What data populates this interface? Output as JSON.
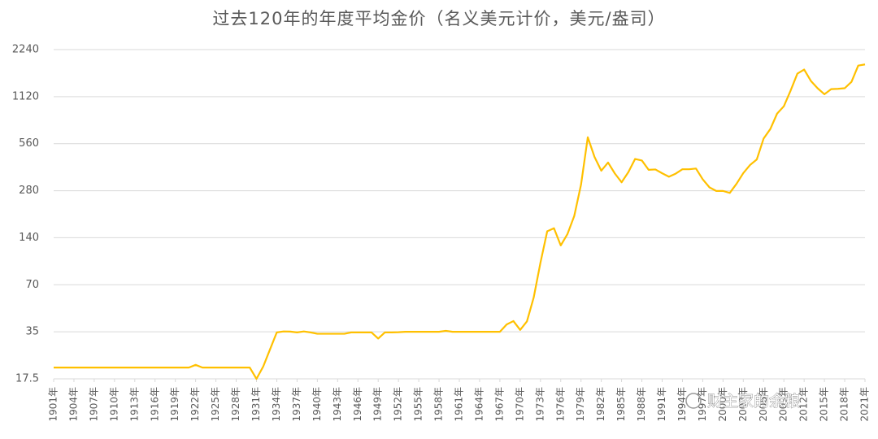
{
  "chart_data": {
    "type": "line",
    "title": "过去120年的年度平均金价（名义美元计价，美元/盎司）",
    "log_scale": true,
    "grid": true,
    "color": "#FFC000",
    "x": [
      1901,
      1902,
      1903,
      1904,
      1905,
      1906,
      1907,
      1908,
      1909,
      1910,
      1911,
      1912,
      1913,
      1914,
      1915,
      1916,
      1917,
      1918,
      1919,
      1920,
      1921,
      1922,
      1923,
      1924,
      1925,
      1926,
      1927,
      1928,
      1929,
      1930,
      1931,
      1932,
      1933,
      1934,
      1935,
      1936,
      1937,
      1938,
      1939,
      1940,
      1941,
      1942,
      1943,
      1944,
      1945,
      1946,
      1947,
      1948,
      1949,
      1950,
      1951,
      1952,
      1953,
      1954,
      1955,
      1956,
      1957,
      1958,
      1959,
      1960,
      1961,
      1962,
      1963,
      1964,
      1965,
      1966,
      1967,
      1968,
      1969,
      1970,
      1971,
      1972,
      1973,
      1974,
      1975,
      1976,
      1977,
      1978,
      1979,
      1980,
      1981,
      1982,
      1983,
      1984,
      1985,
      1986,
      1987,
      1988,
      1989,
      1990,
      1991,
      1992,
      1993,
      1994,
      1995,
      1996,
      1997,
      1998,
      1999,
      2000,
      2001,
      2002,
      2003,
      2004,
      2005,
      2006,
      2007,
      2008,
      2009,
      2010,
      2011,
      2012,
      2013,
      2014,
      2015,
      2016,
      2017,
      2018,
      2019,
      2020,
      2021
    ],
    "values": [
      20.67,
      20.67,
      20.67,
      20.67,
      20.67,
      20.67,
      20.67,
      20.67,
      20.67,
      20.67,
      20.67,
      20.67,
      20.67,
      20.67,
      20.67,
      20.67,
      20.67,
      20.67,
      20.67,
      20.67,
      20.67,
      21.5,
      20.67,
      20.67,
      20.67,
      20.67,
      20.67,
      20.67,
      20.67,
      20.67,
      17.5,
      21,
      27,
      34.7,
      35.2,
      35.1,
      34.7,
      35.2,
      34.7,
      34,
      34,
      34,
      34,
      34,
      34.7,
      34.7,
      34.7,
      34.7,
      31.7,
      34.7,
      34.7,
      34.8,
      35,
      35,
      35,
      35,
      35,
      35,
      35.5,
      35,
      35,
      35,
      35,
      35,
      35,
      35,
      35,
      39,
      41,
      36,
      40.8,
      58,
      97,
      154,
      161,
      125,
      148,
      193,
      306,
      615,
      460,
      376,
      424,
      361,
      317,
      368,
      447,
      437,
      381,
      383,
      362,
      344,
      360,
      384,
      384,
      388,
      331,
      294,
      279,
      279,
      271,
      310,
      363,
      409,
      444,
      603,
      695,
      872,
      972,
      1225,
      1572,
      1669,
      1411,
      1266,
      1160,
      1251,
      1257,
      1268,
      1393,
      1770,
      1800
    ],
    "xlim": [
      1901,
      2021
    ],
    "xticks": [
      {
        "value": 1901,
        "label": "1901年"
      },
      {
        "value": 1904,
        "label": "1904年"
      },
      {
        "value": 1907,
        "label": "1907年"
      },
      {
        "value": 1910,
        "label": "1910年"
      },
      {
        "value": 1913,
        "label": "1913年"
      },
      {
        "value": 1916,
        "label": "1916年"
      },
      {
        "value": 1919,
        "label": "1919年"
      },
      {
        "value": 1922,
        "label": "1922年"
      },
      {
        "value": 1925,
        "label": "1925年"
      },
      {
        "value": 1928,
        "label": "1928年"
      },
      {
        "value": 1931,
        "label": "1931年"
      },
      {
        "value": 1934,
        "label": "1934年"
      },
      {
        "value": 1937,
        "label": "1937年"
      },
      {
        "value": 1940,
        "label": "1940年"
      },
      {
        "value": 1943,
        "label": "1943年"
      },
      {
        "value": 1946,
        "label": "1946年"
      },
      {
        "value": 1949,
        "label": "1949年"
      },
      {
        "value": 1952,
        "label": "1952年"
      },
      {
        "value": 1955,
        "label": "1955年"
      },
      {
        "value": 1958,
        "label": "1958年"
      },
      {
        "value": 1961,
        "label": "1961年"
      },
      {
        "value": 1964,
        "label": "1964年"
      },
      {
        "value": 1967,
        "label": "1967年"
      },
      {
        "value": 1970,
        "label": "1970年"
      },
      {
        "value": 1973,
        "label": "1973年"
      },
      {
        "value": 1976,
        "label": "1976年"
      },
      {
        "value": 1979,
        "label": "1979年"
      },
      {
        "value": 1982,
        "label": "1982年"
      },
      {
        "value": 1985,
        "label": "1985年"
      },
      {
        "value": 1988,
        "label": "1988年"
      },
      {
        "value": 1991,
        "label": "1991年"
      },
      {
        "value": 1994,
        "label": "1994年"
      },
      {
        "value": 1997,
        "label": "1997年"
      },
      {
        "value": 2000,
        "label": "2000年"
      },
      {
        "value": 2003,
        "label": "2003年"
      },
      {
        "value": 2006,
        "label": "2006年"
      },
      {
        "value": 2009,
        "label": "2009年"
      },
      {
        "value": 2012,
        "label": "2012年"
      },
      {
        "value": 2015,
        "label": "2015年"
      },
      {
        "value": 2018,
        "label": "2018年"
      },
      {
        "value": 2021,
        "label": "2021年"
      }
    ],
    "ylim": [
      17.5,
      2240
    ],
    "yticks": [
      17.5,
      35,
      70,
      140,
      280,
      560,
      1120,
      2240
    ],
    "watermark": "财主家的余粮"
  }
}
